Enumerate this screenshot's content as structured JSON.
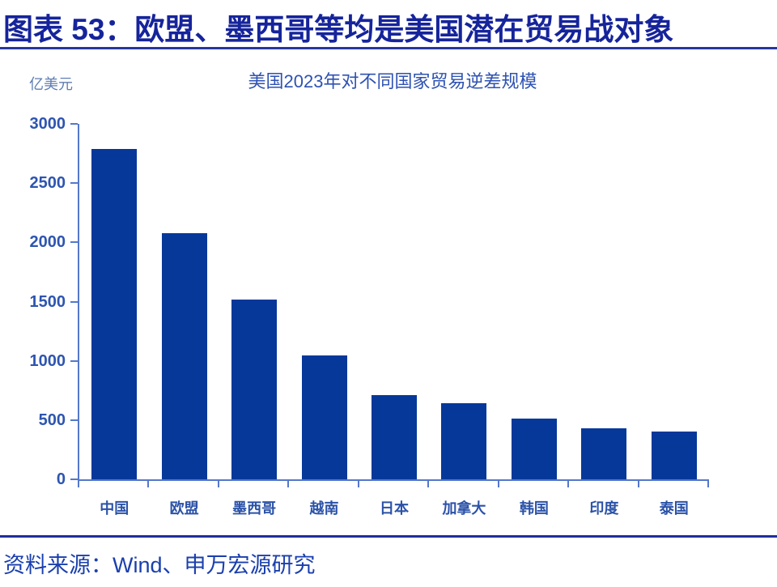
{
  "header": {
    "title": "图表 53：欧盟、墨西哥等均是美国潜在贸易战对象"
  },
  "footer": {
    "source": "资料来源：Wind、申万宏源研究"
  },
  "theme": {
    "page_title_color": "#16249b",
    "title_rule_color": "#27379e",
    "chart_title_color": "#2e52b2",
    "unit_label_color": "#5f7db2",
    "axis_color": "#5478cb",
    "tick_label_color": "#2d55b0",
    "category_label_color": "#2b52a8",
    "bar_color": "#06389a",
    "footer_rule_color": "#1d2f9f",
    "footer_text_color": "#1a3fae"
  },
  "chart_data": {
    "type": "bar",
    "title": "美国2023年对不同国家贸易逆差规模",
    "unit_label": "亿美元",
    "categories": [
      "中国",
      "欧盟",
      "墨西哥",
      "越南",
      "日本",
      "加拿大",
      "韩国",
      "印度",
      "泰国"
    ],
    "values": [
      2790,
      2080,
      1520,
      1045,
      710,
      640,
      510,
      430,
      400
    ],
    "xlabel": "",
    "ylabel": "亿美元",
    "ylim": [
      0,
      3000
    ],
    "yticks": [
      0,
      500,
      1000,
      1500,
      2000,
      2500,
      3000
    ],
    "grid": false,
    "legend": false
  }
}
